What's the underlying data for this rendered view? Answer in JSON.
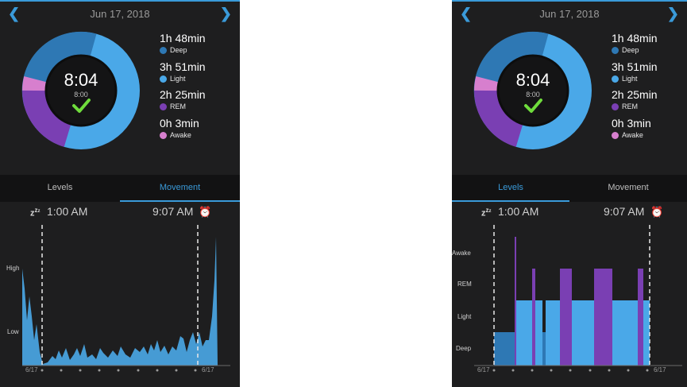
{
  "left_panel": {
    "date": "Jun 17, 2018",
    "center": {
      "total": "8:04",
      "goal": "8:00"
    },
    "legend": [
      {
        "duration": "1h 48min",
        "label": "Deep",
        "color": "#2e78b4"
      },
      {
        "duration": "3h 51min",
        "label": "Light",
        "color": "#4aa8e8"
      },
      {
        "duration": "2h 25min",
        "label": "REM",
        "color": "#7a3fb3"
      },
      {
        "duration": "0h 3min",
        "label": "Awake",
        "color": "#d77fce"
      }
    ],
    "tabs": [
      {
        "label": "Levels",
        "active": false
      },
      {
        "label": "Movement",
        "active": true
      }
    ],
    "start_time": "1:00 AM",
    "end_time": "9:07 AM",
    "y_labels": [
      "High",
      "Low"
    ],
    "x_labels": [
      "6/17",
      "6/17"
    ]
  },
  "right_panel": {
    "date": "Jun 17, 2018",
    "center": {
      "total": "8:04",
      "goal": "8:00"
    },
    "legend": [
      {
        "duration": "1h 48min",
        "label": "Deep",
        "color": "#2e78b4"
      },
      {
        "duration": "3h 51min",
        "label": "Light",
        "color": "#4aa8e8"
      },
      {
        "duration": "2h 25min",
        "label": "REM",
        "color": "#7a3fb3"
      },
      {
        "duration": "0h 3min",
        "label": "Awake",
        "color": "#d77fce"
      }
    ],
    "tabs": [
      {
        "label": "Levels",
        "active": true
      },
      {
        "label": "Movement",
        "active": false
      }
    ],
    "start_time": "1:00 AM",
    "end_time": "9:07 AM",
    "y_labels": [
      "Awake",
      "REM",
      "Light",
      "Deep"
    ],
    "x_labels": [
      "6/17",
      "6/17"
    ]
  },
  "icons": {
    "prev": "chevron-left-icon",
    "next": "chevron-right-icon",
    "sleep": "zzz-icon",
    "wake": "alarm-clock-icon",
    "goal_met": "checkmark-icon"
  }
}
